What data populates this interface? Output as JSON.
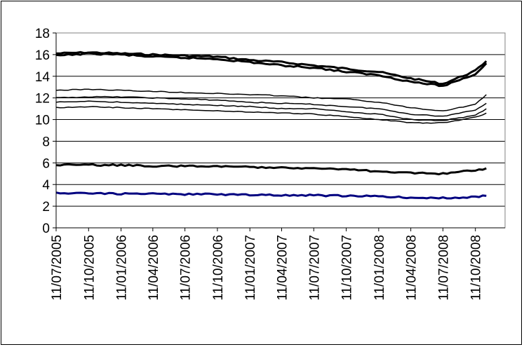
{
  "chart_data": {
    "type": "line",
    "title": "",
    "xlabel": "",
    "ylabel": "",
    "ylim": [
      0,
      18
    ],
    "yticks": [
      0,
      2,
      4,
      6,
      8,
      10,
      12,
      14,
      16,
      18
    ],
    "y_tick_labels": [
      "0",
      "2",
      "4",
      "6",
      "8",
      "10",
      "12",
      "14",
      "16",
      "18"
    ],
    "x_tick_labels": [
      "11/07/2005",
      "11/10/2005",
      "11/01/2006",
      "11/04/2006",
      "11/07/2006",
      "11/10/2006",
      "11/01/2007",
      "11/04/2007",
      "11/07/2007",
      "11/10/2007",
      "11/01/2008",
      "11/04/2008",
      "11/07/2008",
      "11/10/2008"
    ],
    "x": [
      "11/07/2005",
      "11/10/2005",
      "11/01/2006",
      "11/04/2006",
      "11/07/2006",
      "11/10/2006",
      "11/01/2007",
      "11/04/2007",
      "11/07/2007",
      "11/10/2007",
      "11/01/2008",
      "11/04/2008",
      "11/07/2008",
      "11/10/2008",
      "11/11/2008"
    ],
    "grid": true,
    "legend": "none",
    "series": [
      {
        "color": "#000000",
        "width": 3,
        "values": [
          16.1,
          16.2,
          16.1,
          16.0,
          15.9,
          15.8,
          15.5,
          15.3,
          15.0,
          14.7,
          14.4,
          13.8,
          13.3,
          14.5,
          15.4
        ]
      },
      {
        "color": "#000000",
        "width": 3,
        "values": [
          15.9,
          16.1,
          16.0,
          15.8,
          15.7,
          15.6,
          15.3,
          15.0,
          14.8,
          14.4,
          14.1,
          13.5,
          13.1,
          14.2,
          15.2
        ]
      },
      {
        "color": "#000000",
        "width": 1.5,
        "values": [
          12.7,
          12.8,
          12.7,
          12.6,
          12.5,
          12.4,
          12.3,
          12.2,
          12.0,
          11.9,
          11.6,
          11.1,
          10.8,
          11.4,
          12.3
        ]
      },
      {
        "color": "#000000",
        "width": 1.5,
        "values": [
          12.0,
          12.1,
          12.1,
          12.0,
          11.9,
          11.8,
          11.6,
          11.5,
          11.4,
          11.2,
          11.0,
          10.5,
          10.3,
          10.9,
          11.5
        ]
      },
      {
        "color": "#000000",
        "width": 1.5,
        "values": [
          11.6,
          11.7,
          11.6,
          11.5,
          11.4,
          11.3,
          11.2,
          11.0,
          11.0,
          10.7,
          10.5,
          10.0,
          9.9,
          10.4,
          11.0
        ]
      },
      {
        "color": "#000000",
        "width": 1.5,
        "values": [
          11.1,
          11.2,
          11.1,
          11.0,
          10.9,
          10.8,
          10.7,
          10.6,
          10.5,
          10.3,
          10.0,
          9.7,
          9.7,
          10.2,
          10.6
        ]
      },
      {
        "color": "#000000",
        "width": 3,
        "values": [
          5.8,
          5.8,
          5.8,
          5.7,
          5.7,
          5.7,
          5.6,
          5.6,
          5.5,
          5.4,
          5.2,
          5.1,
          5.0,
          5.3,
          5.5
        ]
      },
      {
        "color": "#000080",
        "width": 3,
        "values": [
          3.2,
          3.2,
          3.15,
          3.15,
          3.1,
          3.1,
          3.05,
          3.0,
          3.0,
          2.95,
          2.9,
          2.8,
          2.75,
          2.85,
          2.95
        ]
      }
    ]
  }
}
